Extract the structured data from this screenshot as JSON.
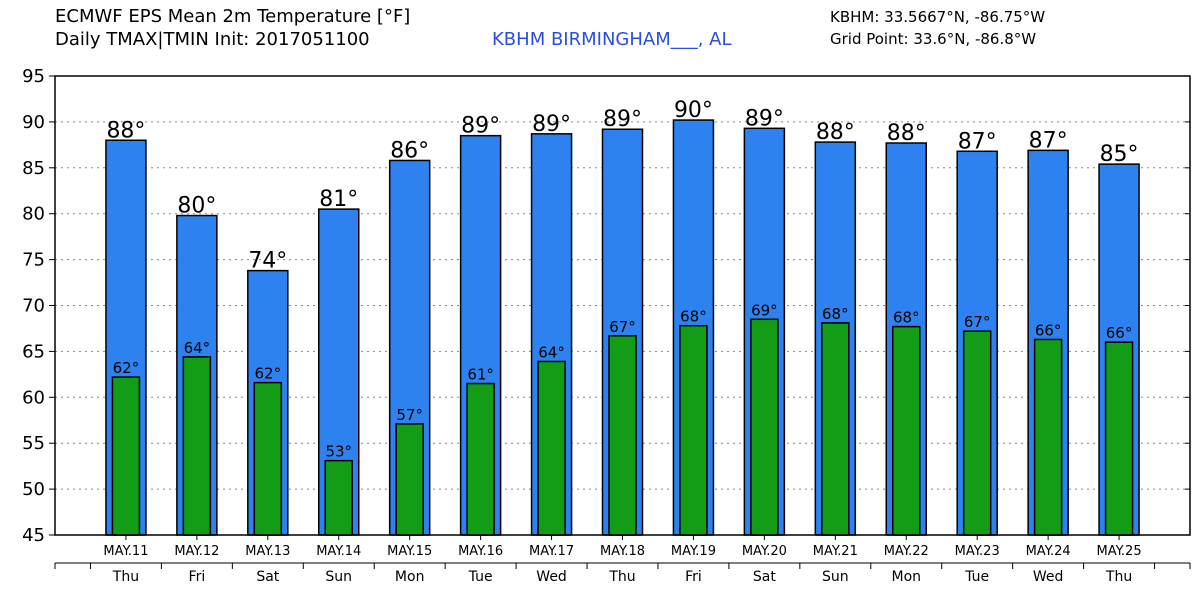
{
  "header": {
    "title_line1": "ECMWF EPS Mean 2m Temperature [°F]",
    "title_line2": "Daily TMAX|TMIN Init: 2017051100",
    "station": "KBHM BIRMINGHAM___, AL",
    "coord_line1": "KBHM: 33.5667°N, -86.75°W",
    "coord_line2": "Grid Point: 33.6°N, -86.8°W"
  },
  "colors": {
    "tmax_fill": "#2e82ef",
    "tmin_fill": "#139c15",
    "outline": "#000000",
    "grid": "#888888"
  },
  "chart_data": {
    "type": "bar",
    "title": "ECMWF EPS Mean 2m Temperature [°F]",
    "xlabel": "",
    "ylabel": "",
    "ylim": [
      45,
      95
    ],
    "yticks": [
      45,
      50,
      55,
      60,
      65,
      70,
      75,
      80,
      85,
      90,
      95
    ],
    "grid": true,
    "categories": [
      "MAY.11",
      "MAY.12",
      "MAY.13",
      "MAY.14",
      "MAY.15",
      "MAY.16",
      "MAY.17",
      "MAY.18",
      "MAY.19",
      "MAY.20",
      "MAY.21",
      "MAY.22",
      "MAY.23",
      "MAY.24",
      "MAY.25"
    ],
    "days": [
      "Thu",
      "Fri",
      "Sat",
      "Sun",
      "Mon",
      "Tue",
      "Wed",
      "Thu",
      "Fri",
      "Sat",
      "Sun",
      "Mon",
      "Tue",
      "Wed",
      "Thu"
    ],
    "series": [
      {
        "name": "TMAX",
        "values": [
          88.0,
          79.8,
          73.8,
          80.5,
          85.8,
          88.5,
          88.7,
          89.2,
          90.2,
          89.3,
          87.8,
          87.7,
          86.8,
          86.9,
          85.4
        ],
        "labels": [
          "88°",
          "80°",
          "74°",
          "81°",
          "86°",
          "89°",
          "89°",
          "89°",
          "90°",
          "89°",
          "88°",
          "88°",
          "87°",
          "87°",
          "85°"
        ]
      },
      {
        "name": "TMIN",
        "values": [
          62.2,
          64.4,
          61.6,
          53.1,
          57.1,
          61.5,
          63.9,
          66.7,
          67.8,
          68.5,
          68.1,
          67.7,
          67.2,
          66.3,
          66.0
        ],
        "labels": [
          "62°",
          "64°",
          "62°",
          "53°",
          "57°",
          "61°",
          "64°",
          "67°",
          "68°",
          "69°",
          "68°",
          "68°",
          "67°",
          "66°",
          "66°"
        ]
      }
    ]
  }
}
